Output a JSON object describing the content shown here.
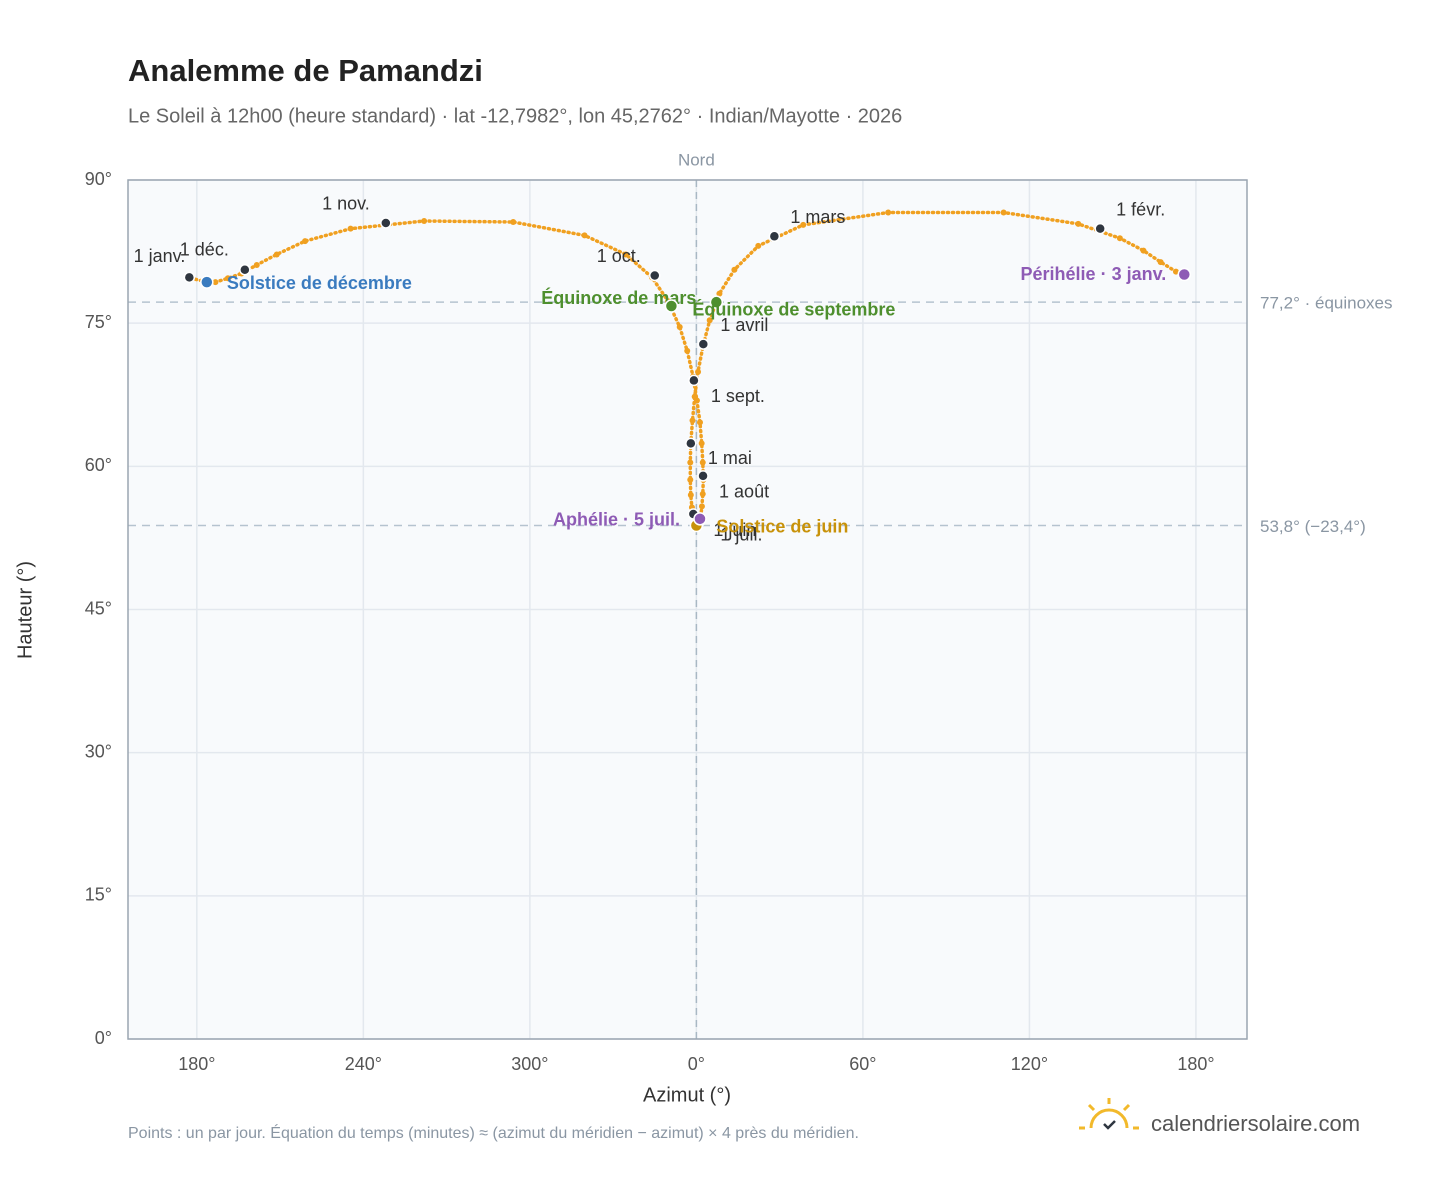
{
  "chart_data": {
    "type": "analemma",
    "title": "Analemme de Pamandzi",
    "subtitle": "Le Soleil à 12h00 (heure standard) · lat -12,7982°, lon 45,2762° · Indian/Mayotte · 2026",
    "x_label": "Azimut (°)",
    "y_label": "Hauteur (°)",
    "footnote": "Points : un par jour. Équation du temps (minutes) ≈ (azimut du méridien − azimut) × 4 près du méridien.",
    "brand": "calendriersolaire.com",
    "color": "#f0a020",
    "marker_color": "#2f3640",
    "grid": true,
    "xlim": [
      155.2,
      558.4
    ],
    "ylim": [
      0,
      90
    ],
    "xticks": [
      {
        "value": 180,
        "label": "180°"
      },
      {
        "value": 240,
        "label": "240°"
      },
      {
        "value": 300,
        "label": "300°"
      },
      {
        "value": 360,
        "label": "0°"
      },
      {
        "value": 420,
        "label": "60°"
      },
      {
        "value": 480,
        "label": "120°"
      },
      {
        "value": 540,
        "label": "180°"
      }
    ],
    "yticks": [
      {
        "value": 0,
        "label": "0°"
      },
      {
        "value": 15,
        "label": "15°"
      },
      {
        "value": 30,
        "label": "30°"
      },
      {
        "value": 45,
        "label": "45°"
      },
      {
        "value": 60,
        "label": "60°"
      },
      {
        "value": 75,
        "label": "75°"
      },
      {
        "value": 90,
        "label": "90°"
      }
    ],
    "north_line": {
      "value": 360,
      "label": "Nord"
    },
    "reference_lines": [
      {
        "value": 77.2,
        "label": "77,2° · équinoxes"
      },
      {
        "value": 53.8,
        "label": "53,8° (−23,4°)"
      }
    ],
    "x": [
      177.3,
      532.8,
      527.3,
      521.1,
      512.6,
      497.6,
      470.7,
      429.1,
      398.5,
      382.3,
      373.7,
      368.3,
      364.8,
      362.4,
      360.6,
      359.4,
      358.6,
      358.0,
      357.8,
      357.8,
      358.0,
      358.4,
      358.8,
      359.4,
      359.9,
      360.5,
      361.1,
      361.6,
      362.0,
      362.3,
      362.5,
      362.3,
      361.9,
      361.3,
      360.2,
      358.8,
      356.7,
      354.0,
      349.8,
      344.0,
      334.6,
      319.7,
      294.0,
      261.9,
      235.4,
      219.0,
      208.8,
      201.6,
      196.1,
      191.2,
      186.7,
      182.4,
      178.0
    ],
    "values": [
      79.8,
      80.4,
      81.4,
      82.6,
      83.9,
      85.4,
      86.6,
      86.6,
      85.3,
      83.1,
      80.6,
      78.1,
      75.3,
      72.6,
      69.9,
      67.3,
      64.8,
      62.5,
      60.4,
      58.6,
      57.0,
      55.7,
      54.8,
      54.1,
      53.8,
      53.8,
      54.2,
      54.8,
      55.8,
      57.1,
      58.6,
      60.4,
      62.4,
      64.6,
      66.9,
      69.4,
      72.1,
      74.6,
      77.3,
      79.8,
      82.2,
      84.2,
      85.6,
      85.7,
      84.9,
      83.6,
      82.2,
      81.1,
      80.2,
      79.7,
      79.3,
      79.4,
      79.7
    ],
    "months": [
      {
        "label": "1 janv.",
        "x": 177.3,
        "y": 79.8
      },
      {
        "label": "1 févr.",
        "x": 505.5,
        "y": 84.9
      },
      {
        "label": "1 mars",
        "x": 388.1,
        "y": 84.1
      },
      {
        "label": "1 avril",
        "x": 362.5,
        "y": 72.8
      },
      {
        "label": "1 mai",
        "x": 358.0,
        "y": 62.4
      },
      {
        "label": "1 juin",
        "x": 358.9,
        "y": 55.0
      },
      {
        "label": "1 juil.",
        "x": 361.1,
        "y": 54.2
      },
      {
        "label": "1 août",
        "x": 362.4,
        "y": 59.0
      },
      {
        "label": "1 sept.",
        "x": 359.1,
        "y": 69.0
      },
      {
        "label": "1 oct.",
        "x": 345.0,
        "y": 80.0
      },
      {
        "label": "1 nov.",
        "x": 248.1,
        "y": 85.5
      },
      {
        "label": "1 déc.",
        "x": 197.3,
        "y": 80.6
      }
    ],
    "events": [
      {
        "label": "Solstice de décembre",
        "x": 183.6,
        "y": 79.3,
        "color": "#3a7bbf"
      },
      {
        "label": "Périhélie · 3 janv.",
        "x": 535.8,
        "y": 80.1,
        "color": "#8e5bb5"
      },
      {
        "label": "Équinoxe de mars",
        "x": 367.2,
        "y": 77.2,
        "color": "#4e8f2e"
      },
      {
        "label": "Équinoxe de septembre",
        "x": 351.0,
        "y": 76.8,
        "color": "#4e8f2e"
      },
      {
        "label": "Solstice de juin",
        "x": 360.0,
        "y": 53.8,
        "color": "#c8920a"
      },
      {
        "label": "Aphélie · 5 juil.",
        "x": 361.3,
        "y": 54.5,
        "color": "#8e5bb5"
      }
    ]
  }
}
